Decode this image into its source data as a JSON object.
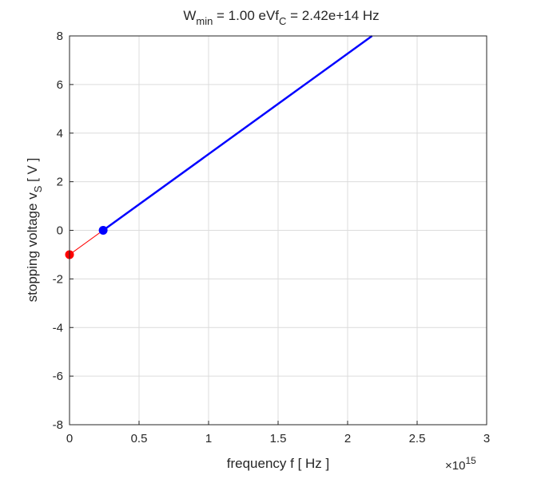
{
  "chart_data": {
    "type": "line",
    "title": {
      "w_main": "W",
      "w_sub": "min",
      "w_rest": " = 1.00  eV",
      "f_main": "f",
      "f_sub": "C",
      "f_rest": " = 2.42e+14  Hz"
    },
    "xlabel": "frequency  f  [ Hz ]",
    "ylabel_main": "stopping voltage  v",
    "ylabel_sub": "S",
    "ylabel_rest": "  [ V ]",
    "x_exponent_base": "×10",
    "x_exponent_power": "15",
    "xlim": [
      0,
      3
    ],
    "ylim": [
      -8,
      8
    ],
    "x_ticks": [
      0,
      0.5,
      1,
      1.5,
      2,
      2.5,
      3
    ],
    "x_tick_labels": [
      "0",
      "0.5",
      "1",
      "1.5",
      "2",
      "2.5",
      "3"
    ],
    "y_ticks": [
      -8,
      -6,
      -4,
      -2,
      0,
      2,
      4,
      6,
      8
    ],
    "y_tick_labels": [
      "-8",
      "-6",
      "-4",
      "-2",
      "0",
      "2",
      "4",
      "6",
      "8"
    ],
    "grid": true,
    "series": [
      {
        "color": "#0000ff",
        "points": [
          [
            0.242,
            0
          ],
          [
            2.176,
            8
          ]
        ]
      },
      {
        "color": "#ff0000",
        "points": [
          [
            0,
            -1
          ],
          [
            0.242,
            0
          ]
        ]
      }
    ],
    "markers": [
      {
        "x": 0,
        "y": -1,
        "color": "#ff0000"
      },
      {
        "x": 0.242,
        "y": 0,
        "color": "#0000ff"
      }
    ]
  }
}
